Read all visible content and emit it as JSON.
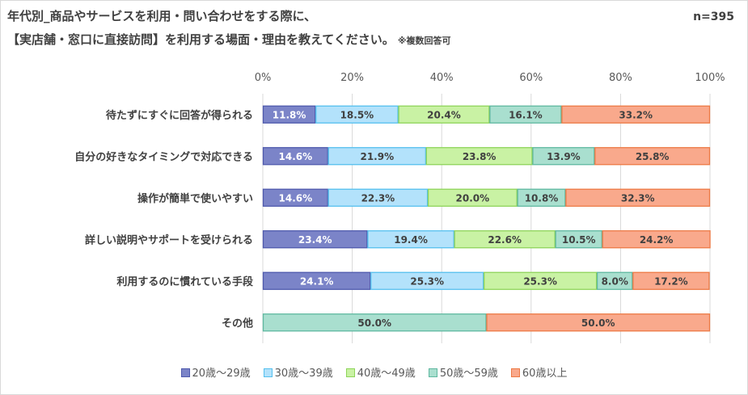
{
  "title_line1": "年代別_商品やサービスを利用・問い合わせをする際に、",
  "title_line2": "【実店舗・窓口に直接訪問】を利用する場面・理由を教えてください。",
  "note": "※複数回答可",
  "sample_size": "n=395",
  "colors": {
    "grid": "#d9d9d9",
    "label_text": "#404040",
    "series_fill": [
      "#7b84c8",
      "#b3e2fb",
      "#c9f2a4",
      "#a9dfcf",
      "#f9a98c"
    ],
    "series_stroke": [
      "#4f5aad",
      "#55c0ee",
      "#8ed45a",
      "#5fb8a0",
      "#ed7a45"
    ],
    "value_text": [
      "#ffffff",
      "#404040",
      "#404040",
      "#404040",
      "#404040"
    ]
  },
  "chart_data": {
    "type": "bar",
    "orientation": "horizontal",
    "stacked": true,
    "categories": [
      "待たずにすぐに回答が得られる",
      "自分の好きなタイミングで対応できる",
      "操作が簡単で使いやすい",
      "詳しい説明やサポートを受けられる",
      "利用するのに慣れている手段",
      "その他"
    ],
    "series": [
      {
        "name": "20歳～29歳",
        "values": [
          11.8,
          14.6,
          14.6,
          23.4,
          24.1,
          0
        ]
      },
      {
        "name": "30歳～39歳",
        "values": [
          18.5,
          21.9,
          22.3,
          19.4,
          25.3,
          0
        ]
      },
      {
        "name": "40歳～49歳",
        "values": [
          20.4,
          23.8,
          20.0,
          22.6,
          25.3,
          0
        ]
      },
      {
        "name": "50歳～59歳",
        "values": [
          16.1,
          13.9,
          10.8,
          10.5,
          8.0,
          50.0
        ]
      },
      {
        "name": "60歳以上",
        "values": [
          33.2,
          25.8,
          32.3,
          24.2,
          17.2,
          50.0
        ]
      }
    ],
    "x_ticks": [
      "0%",
      "20%",
      "40%",
      "60%",
      "80%",
      "100%"
    ],
    "xlim": [
      0,
      100
    ],
    "grid": true,
    "legend_position": "bottom",
    "value_label_format": "%"
  }
}
